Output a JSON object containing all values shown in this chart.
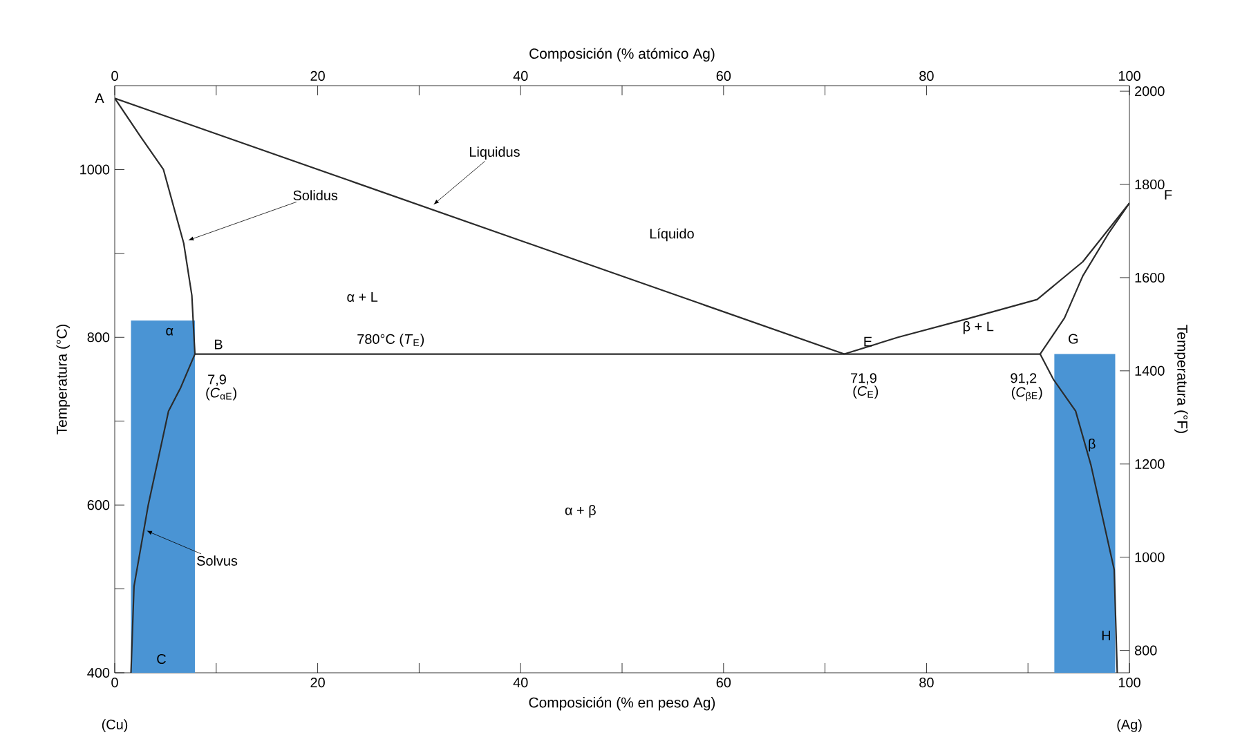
{
  "chart_data": {
    "type": "line",
    "xlabel": "Composición (% en peso Ag)",
    "x2label": "Composición (% atómico Ag)",
    "ylabel": "Temperatura (°C)",
    "y2label": "Temperatura (°F)",
    "xlim": [
      0,
      100
    ],
    "ylim": [
      400,
      1100
    ],
    "x2lim": [
      0,
      100
    ],
    "y2lim": [
      752,
      2012
    ],
    "xticks": [
      0,
      {
        "value": 10,
        "label": null
      },
      20,
      {
        "value": 30,
        "label": null
      },
      40,
      {
        "value": 50,
        "label": null
      },
      60,
      {
        "value": 70,
        "label": null
      },
      80,
      {
        "value": 90,
        "label": null
      },
      100
    ],
    "yticks": [
      400,
      {
        "value": 500,
        "label": null
      },
      600,
      {
        "value": 700,
        "label": null
      },
      800,
      {
        "value": 900,
        "label": null
      },
      1000
    ],
    "x2ticks": [
      0,
      {
        "value": 10,
        "label": null
      },
      20,
      {
        "value": 30,
        "label": null
      },
      40,
      {
        "value": 50,
        "label": null
      },
      60,
      {
        "value": 70,
        "label": null
      },
      80,
      100
    ],
    "y2ticks": [
      800,
      1000,
      1200,
      1400,
      1600,
      1800,
      2000
    ],
    "series": [
      {
        "type": "area",
        "color": "#4a94d4",
        "x": [
          1.6,
          7.9
        ],
        "values": [
          820,
          820
        ]
      },
      {
        "type": "area",
        "color": "#4a94d4",
        "x": [
          92.6,
          98.6
        ],
        "values": [
          780,
          780
        ]
      },
      {
        "color": "#2b2b2b",
        "x": [
          0,
          71.9
        ],
        "values": [
          1085,
          780
        ]
      },
      {
        "color": "#2b2b2b",
        "x": [
          71.9,
          77.2,
          84,
          90.9,
          95.4,
          100
        ],
        "values": [
          780,
          800,
          822,
          845,
          890,
          960
        ]
      },
      {
        "color": "#2b2b2b",
        "x": [
          0,
          2.5,
          4.8,
          6.8,
          7.6,
          7.9
        ],
        "values": [
          1085,
          1040,
          1000,
          912,
          850,
          780
        ]
      },
      {
        "color": "#2b2b2b",
        "x": [
          7.9,
          6.5,
          5.3,
          3.3,
          1.9,
          1.6
        ],
        "values": [
          780,
          740,
          712,
          600,
          503,
          400
        ]
      },
      {
        "color": "#2b2b2b",
        "x": [
          91.2,
          93.6,
          95.4,
          98,
          100
        ],
        "values": [
          780,
          823,
          873,
          925,
          960
        ]
      },
      {
        "color": "#2b2b2b",
        "x": [
          91.2,
          92.5,
          94.7,
          96.2,
          98.5,
          98.8
        ],
        "values": [
          780,
          750,
          712,
          648,
          523,
          400
        ]
      },
      {
        "color": "#2b2b2b",
        "x": [
          7.9,
          91.2
        ],
        "values": [
          780,
          780
        ]
      }
    ],
    "annotations": [
      {
        "text": "A",
        "x": 0,
        "y": 1085
      },
      {
        "text": "Solidus",
        "x": 7.1,
        "y": 915
      },
      {
        "text": "Liquidus",
        "x": 31.3,
        "y": 957
      },
      {
        "text": "Solvus",
        "x": 3.0,
        "y": 570
      },
      {
        "text": "F",
        "x": 100,
        "y": 960
      },
      {
        "text": "780°C (*T*$_{E}$)",
        "x": 27.2,
        "y": 780
      },
      {
        "text": "B",
        "x": 7.9,
        "y": 780
      },
      {
        "text": "7,9",
        "x": 7.9,
        "y": 780
      },
      {
        "text": "E",
        "x": 71.9,
        "y": 780
      },
      {
        "text": "71,9",
        "x": 71.9,
        "y": 780
      },
      {
        "text": "G",
        "x": 91.2,
        "y": 780
      },
      {
        "text": "91,2",
        "x": 91.2,
        "y": 780
      },
      {
        "text": "C",
        "x": 1.6,
        "y": 400
      },
      {
        "text": "H",
        "x": 98.8,
        "y": 400
      },
      "Líquido",
      "α + L",
      "β + L",
      "α",
      "β",
      "α + β",
      "(*C*$_{αE}$)",
      "(*C*$_{E}$)",
      "(*C*$_{βE}$)",
      "(Cu)",
      "(Ag)"
    ]
  }
}
